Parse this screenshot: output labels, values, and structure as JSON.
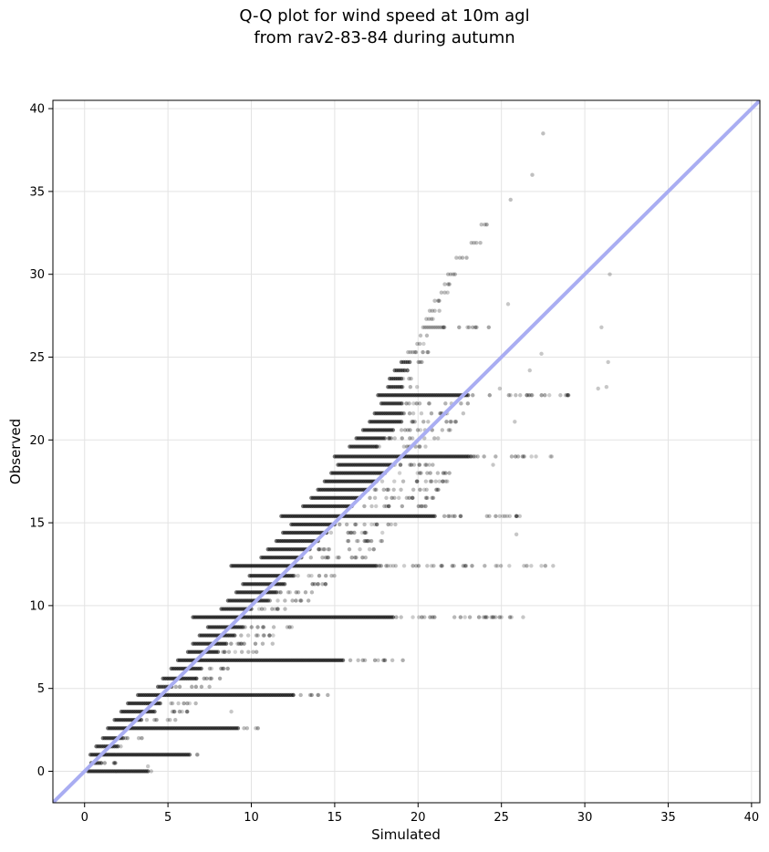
{
  "chart_data": {
    "type": "scatter",
    "title": "Q-Q plot for wind speed at 10m agl",
    "subtitle": "from rav2-83-84 during autumn",
    "xlabel": "Simulated",
    "ylabel": "Observed",
    "xlim": [
      -1.9,
      40.5
    ],
    "ylim": [
      -1.9,
      40.5
    ],
    "x_ticks": [
      0,
      5,
      10,
      15,
      20,
      25,
      30,
      35,
      40
    ],
    "y_ticks": [
      0,
      5,
      10,
      15,
      20,
      25,
      30,
      35,
      40
    ],
    "grid": true,
    "point_color": "#000000",
    "reference_line": {
      "from": [
        -1.9,
        -1.9
      ],
      "to": [
        40.5,
        40.5
      ],
      "color": "#a9adf2"
    },
    "observed_levels": [
      {
        "y": 0.0,
        "x_start": 0.2,
        "x_dense_end": 3.8,
        "x_sparse_end": 4.1
      },
      {
        "y": 0.5,
        "x_start": 0.4,
        "x_dense_end": 1.0,
        "x_sparse_end": 2.2
      },
      {
        "y": 1.0,
        "x_start": 0.35,
        "x_dense_end": 6.3,
        "x_sparse_end": 6.9
      },
      {
        "y": 1.5,
        "x_start": 0.7,
        "x_dense_end": 2.0,
        "x_sparse_end": 2.3
      },
      {
        "y": 2.0,
        "x_start": 1.1,
        "x_dense_end": 2.3,
        "x_sparse_end": 3.6
      },
      {
        "y": 2.6,
        "x_start": 1.4,
        "x_dense_end": 9.2,
        "x_sparse_end": 10.5
      },
      {
        "y": 3.1,
        "x_start": 1.8,
        "x_dense_end": 3.4,
        "x_sparse_end": 5.5
      },
      {
        "y": 3.6,
        "x_start": 2.2,
        "x_dense_end": 4.2,
        "x_sparse_end": 7.0
      },
      {
        "y": 4.1,
        "x_start": 2.6,
        "x_dense_end": 4.5,
        "x_sparse_end": 7.2
      },
      {
        "y": 4.6,
        "x_start": 3.2,
        "x_dense_end": 12.5,
        "x_sparse_end": 14.8
      },
      {
        "y": 5.1,
        "x_start": 4.4,
        "x_dense_end": 5.0,
        "x_sparse_end": 7.5
      },
      {
        "y": 5.6,
        "x_start": 4.7,
        "x_dense_end": 6.7,
        "x_sparse_end": 8.7
      },
      {
        "y": 6.2,
        "x_start": 5.2,
        "x_dense_end": 7.0,
        "x_sparse_end": 9.0
      },
      {
        "y": 6.7,
        "x_start": 5.6,
        "x_dense_end": 15.5,
        "x_sparse_end": 19.2
      },
      {
        "y": 7.2,
        "x_start": 6.2,
        "x_dense_end": 8.0,
        "x_sparse_end": 11.0
      },
      {
        "y": 7.7,
        "x_start": 6.5,
        "x_dense_end": 8.5,
        "x_sparse_end": 11.5
      },
      {
        "y": 8.2,
        "x_start": 6.9,
        "x_dense_end": 9.0,
        "x_sparse_end": 12.0
      },
      {
        "y": 8.7,
        "x_start": 7.4,
        "x_dense_end": 9.5,
        "x_sparse_end": 12.5
      },
      {
        "y": 9.3,
        "x_start": 6.5,
        "x_dense_end": 18.5,
        "x_sparse_end": 26.2
      },
      {
        "y": 9.8,
        "x_start": 8.2,
        "x_dense_end": 10.0,
        "x_sparse_end": 12.5
      },
      {
        "y": 10.3,
        "x_start": 8.6,
        "x_dense_end": 11.0,
        "x_sparse_end": 13.5
      },
      {
        "y": 10.8,
        "x_start": 9.1,
        "x_dense_end": 11.5,
        "x_sparse_end": 14.0
      },
      {
        "y": 11.3,
        "x_start": 9.5,
        "x_dense_end": 12.0,
        "x_sparse_end": 14.5
      },
      {
        "y": 11.8,
        "x_start": 9.9,
        "x_dense_end": 12.5,
        "x_sparse_end": 15.0
      },
      {
        "y": 12.4,
        "x_start": 8.8,
        "x_dense_end": 17.5,
        "x_sparse_end": 28.5
      },
      {
        "y": 12.9,
        "x_start": 10.6,
        "x_dense_end": 13.0,
        "x_sparse_end": 17.0
      },
      {
        "y": 13.4,
        "x_start": 11.0,
        "x_dense_end": 13.5,
        "x_sparse_end": 17.5
      },
      {
        "y": 13.9,
        "x_start": 11.5,
        "x_dense_end": 14.0,
        "x_sparse_end": 18.0
      },
      {
        "y": 14.4,
        "x_start": 11.9,
        "x_dense_end": 14.5,
        "x_sparse_end": 18.5
      },
      {
        "y": 14.9,
        "x_start": 12.4,
        "x_dense_end": 15.0,
        "x_sparse_end": 19.0
      },
      {
        "y": 15.4,
        "x_start": 11.8,
        "x_dense_end": 21.0,
        "x_sparse_end": 26.5
      },
      {
        "y": 16.0,
        "x_start": 13.1,
        "x_dense_end": 16.0,
        "x_sparse_end": 20.5
      },
      {
        "y": 16.5,
        "x_start": 13.6,
        "x_dense_end": 16.5,
        "x_sparse_end": 21.0
      },
      {
        "y": 17.0,
        "x_start": 14.0,
        "x_dense_end": 17.0,
        "x_sparse_end": 21.5
      },
      {
        "y": 17.5,
        "x_start": 14.4,
        "x_dense_end": 17.5,
        "x_sparse_end": 22.0
      },
      {
        "y": 18.0,
        "x_start": 14.8,
        "x_dense_end": 18.0,
        "x_sparse_end": 22.0
      },
      {
        "y": 18.5,
        "x_start": 15.2,
        "x_dense_end": 18.5,
        "x_sparse_end": 22.5
      },
      {
        "y": 19.0,
        "x_start": 15.0,
        "x_dense_end": 23.0,
        "x_sparse_end": 28.6
      },
      {
        "y": 19.6,
        "x_start": 15.9,
        "x_dense_end": 17.5,
        "x_sparse_end": 21.0
      },
      {
        "y": 20.1,
        "x_start": 16.3,
        "x_dense_end": 18.0,
        "x_sparse_end": 21.5
      },
      {
        "y": 20.6,
        "x_start": 16.7,
        "x_dense_end": 18.5,
        "x_sparse_end": 22.0
      },
      {
        "y": 21.1,
        "x_start": 17.1,
        "x_dense_end": 19.0,
        "x_sparse_end": 22.5
      },
      {
        "y": 21.6,
        "x_start": 17.4,
        "x_dense_end": 19.0,
        "x_sparse_end": 23.0
      },
      {
        "y": 22.2,
        "x_start": 17.8,
        "x_dense_end": 19.0,
        "x_sparse_end": 23.0
      },
      {
        "y": 22.7,
        "x_start": 17.6,
        "x_dense_end": 23.0,
        "x_sparse_end": 29.2
      },
      {
        "y": 23.2,
        "x_start": 18.2,
        "x_dense_end": 19.0,
        "x_sparse_end": 20.0
      },
      {
        "y": 23.7,
        "x_start": 18.3,
        "x_dense_end": 19.0,
        "x_sparse_end": 20.0
      },
      {
        "y": 24.2,
        "x_start": 18.6,
        "x_dense_end": 19.2,
        "x_sparse_end": 20.0
      },
      {
        "y": 24.7,
        "x_start": 19.0,
        "x_dense_end": 19.5,
        "x_sparse_end": 20.5
      },
      {
        "y": 25.3,
        "x_start": 19.4,
        "x_dense_end": 19.8,
        "x_sparse_end": 21.0
      },
      {
        "y": 25.8,
        "x_start": 19.9,
        "x_dense_end": 20.0,
        "x_sparse_end": 20.5
      },
      {
        "y": 26.3,
        "x_start": 20.1,
        "x_dense_end": 20.2,
        "x_sparse_end": 20.6
      },
      {
        "y": 26.8,
        "x_start": 20.3,
        "x_dense_end": 21.5,
        "x_sparse_end": 24.5
      },
      {
        "y": 27.3,
        "x_start": 20.5,
        "x_dense_end": 20.8,
        "x_sparse_end": 21.0
      },
      {
        "y": 27.8,
        "x_start": 20.7,
        "x_dense_end": 21.0,
        "x_sparse_end": 21.3
      },
      {
        "y": 28.4,
        "x_start": 21.0,
        "x_dense_end": 21.2,
        "x_sparse_end": 21.5
      },
      {
        "y": 28.9,
        "x_start": 21.4,
        "x_dense_end": 21.6,
        "x_sparse_end": 21.9
      },
      {
        "y": 29.4,
        "x_start": 21.6,
        "x_dense_end": 21.8,
        "x_sparse_end": 22.0
      },
      {
        "y": 30.0,
        "x_start": 21.8,
        "x_dense_end": 22.1,
        "x_sparse_end": 22.3
      },
      {
        "y": 31.0,
        "x_start": 22.3,
        "x_dense_end": 22.5,
        "x_sparse_end": 23.0
      },
      {
        "y": 31.9,
        "x_start": 23.2,
        "x_dense_end": 23.5,
        "x_sparse_end": 23.8
      },
      {
        "y": 33.0,
        "x_start": 23.8,
        "x_dense_end": 24.0,
        "x_sparse_end": 24.2
      },
      {
        "y": 34.5,
        "x_start": 25.5,
        "x_dense_end": 25.6,
        "x_sparse_end": 25.7
      },
      {
        "y": 36.0,
        "x_start": 26.8,
        "x_dense_end": 26.9,
        "x_sparse_end": 27.0
      },
      {
        "y": 38.5,
        "x_start": 27.5,
        "x_dense_end": 27.5,
        "x_sparse_end": 27.6
      }
    ],
    "outliers": [
      {
        "x": 31.5,
        "y": 30.0
      },
      {
        "x": 31.0,
        "y": 26.8
      },
      {
        "x": 31.4,
        "y": 24.7
      },
      {
        "x": 31.3,
        "y": 23.2
      },
      {
        "x": 30.8,
        "y": 23.1
      },
      {
        "x": 27.4,
        "y": 25.2
      },
      {
        "x": 26.7,
        "y": 24.2
      },
      {
        "x": 25.4,
        "y": 28.2
      },
      {
        "x": 24.9,
        "y": 23.1
      },
      {
        "x": 25.8,
        "y": 21.1
      },
      {
        "x": 25.9,
        "y": 14.3
      },
      {
        "x": 26.1,
        "y": 15.4
      },
      {
        "x": 25.5,
        "y": 15.4
      },
      {
        "x": 28.1,
        "y": 12.4
      },
      {
        "x": 24.5,
        "y": 18.5
      },
      {
        "x": 8.8,
        "y": 3.6
      },
      {
        "x": 3.8,
        "y": 0.3
      },
      {
        "x": 26.3,
        "y": 9.3
      },
      {
        "x": 25.6,
        "y": 9.3
      },
      {
        "x": 25.0,
        "y": 9.3
      }
    ]
  }
}
